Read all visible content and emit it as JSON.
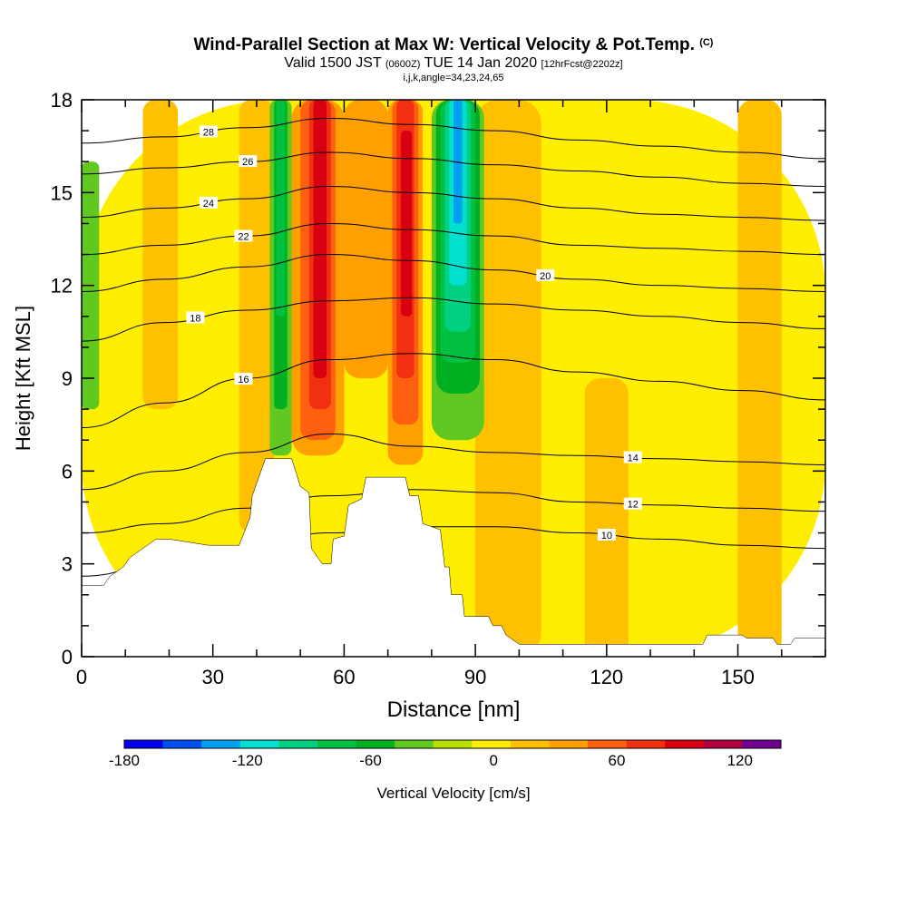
{
  "header": {
    "title": "Wind-Parallel Section at Max W: Vertical Velocity & Pot.Temp.",
    "title_unit": "(C)",
    "valid_prefix": "Valid 1500 JST",
    "valid_utc": "(0600Z)",
    "valid_date": "TUE 14 Jan 2020",
    "forecast": "[12hrFcst@2202z]",
    "indices": "i,j,k,angle=34,23,24,65"
  },
  "chart_data": {
    "type": "heatmap",
    "xlabel": "Distance [nm]",
    "ylabel": "Height [Kft MSL]",
    "xlim": [
      0,
      170
    ],
    "ylim": [
      0,
      18
    ],
    "x_ticks": [
      "0",
      "30",
      "60",
      "90",
      "120",
      "150"
    ],
    "y_ticks": [
      "0",
      "3",
      "6",
      "9",
      "12",
      "15",
      "18"
    ],
    "colorbar": {
      "label": "Vertical Velocity [cm/s]",
      "tick_labels": [
        "-180",
        "-120",
        "-60",
        "0",
        "60",
        "120"
      ],
      "range": [
        -180,
        140
      ],
      "colors": [
        "#0000f0",
        "#0050f0",
        "#00a0f0",
        "#00e0d0",
        "#00d080",
        "#00c040",
        "#00b020",
        "#60c820",
        "#b8e000",
        "#ffee00",
        "#ffc000",
        "#ffa000",
        "#ff6010",
        "#f03010",
        "#d80010",
        "#b00040",
        "#700090"
      ],
      "bin_width": 20
    },
    "velocity_cells": [
      {
        "x": [
          0,
          170
        ],
        "y": [
          0,
          18
        ],
        "w": 10
      },
      {
        "x": [
          14,
          22
        ],
        "y": [
          8,
          18
        ],
        "w": 30
      },
      {
        "x": [
          36,
          44
        ],
        "y": [
          4,
          18
        ],
        "w": 30
      },
      {
        "x": [
          90,
          105
        ],
        "y": [
          0,
          18
        ],
        "w": 30
      },
      {
        "x": [
          115,
          125
        ],
        "y": [
          0,
          9
        ],
        "w": 30
      },
      {
        "x": [
          150,
          160
        ],
        "y": [
          0,
          18
        ],
        "w": 30
      },
      {
        "x": [
          0,
          4
        ],
        "y": [
          8,
          16
        ],
        "w": -30
      },
      {
        "x": [
          43,
          48
        ],
        "y": [
          6.5,
          18
        ],
        "w": -40
      },
      {
        "x": [
          44,
          47
        ],
        "y": [
          8,
          18
        ],
        "w": -60
      },
      {
        "x": [
          44.5,
          46.5
        ],
        "y": [
          11,
          18
        ],
        "w": -80
      },
      {
        "x": [
          48,
          60
        ],
        "y": [
          6.5,
          18
        ],
        "w": 40
      },
      {
        "x": [
          50,
          58
        ],
        "y": [
          7,
          18
        ],
        "w": 60
      },
      {
        "x": [
          52,
          57
        ],
        "y": [
          8,
          18
        ],
        "w": 80
      },
      {
        "x": [
          53,
          56
        ],
        "y": [
          9,
          18
        ],
        "w": 100
      },
      {
        "x": [
          60,
          70
        ],
        "y": [
          9,
          18
        ],
        "w": 40
      },
      {
        "x": [
          70,
          78
        ],
        "y": [
          6.2,
          18
        ],
        "w": 40
      },
      {
        "x": [
          71,
          77
        ],
        "y": [
          7.5,
          18
        ],
        "w": 60
      },
      {
        "x": [
          72,
          76
        ],
        "y": [
          9,
          18
        ],
        "w": 80
      },
      {
        "x": [
          73,
          75.5
        ],
        "y": [
          11,
          17
        ],
        "w": 100
      },
      {
        "x": [
          80,
          92
        ],
        "y": [
          7,
          18
        ],
        "w": -30
      },
      {
        "x": [
          81,
          91
        ],
        "y": [
          8.5,
          18
        ],
        "w": -50
      },
      {
        "x": [
          82,
          90
        ],
        "y": [
          9.5,
          18
        ],
        "w": -70
      },
      {
        "x": [
          83,
          89
        ],
        "y": [
          10.5,
          18
        ],
        "w": -90
      },
      {
        "x": [
          84,
          88
        ],
        "y": [
          12,
          18
        ],
        "w": -110
      },
      {
        "x": [
          85,
          87
        ],
        "y": [
          14,
          18
        ],
        "w": -130
      }
    ],
    "isotherms": [
      {
        "value": "10",
        "label_x": 120,
        "y": [
          2.6,
          3.0,
          3.6,
          4.0,
          4.2,
          4.2,
          4.0,
          3.8,
          3.6,
          3.5
        ]
      },
      {
        "value": "12",
        "label_x": 126,
        "y": [
          4.0,
          4.3,
          4.8,
          5.2,
          5.4,
          5.3,
          5.0,
          4.9,
          4.8,
          4.7
        ]
      },
      {
        "value": "14",
        "label_x": 126,
        "y": [
          5.4,
          6.0,
          6.6,
          7.2,
          6.8,
          6.6,
          6.5,
          6.4,
          6.3,
          6.2
        ]
      },
      {
        "value": "16",
        "label_x": 37,
        "y": [
          7.4,
          8.2,
          9.0,
          9.6,
          9.8,
          9.6,
          9.2,
          8.9,
          8.6,
          8.3
        ]
      },
      {
        "value": "18",
        "label_x": 26,
        "y": [
          10.2,
          10.8,
          11.2,
          11.5,
          11.6,
          11.4,
          11.2,
          11.0,
          10.8,
          10.6
        ]
      },
      {
        "value": "20",
        "label_x": 106,
        "y": [
          11.8,
          12.2,
          12.6,
          13.0,
          12.8,
          12.5,
          12.2,
          12.0,
          11.9,
          11.8
        ]
      },
      {
        "value": "22",
        "label_x": 37,
        "y": [
          13.0,
          13.3,
          13.6,
          14.0,
          13.8,
          13.6,
          13.3,
          13.2,
          13.1,
          13.0
        ]
      },
      {
        "value": "24",
        "label_x": 29,
        "y": [
          14.2,
          14.5,
          14.8,
          15.2,
          15.0,
          14.8,
          14.5,
          14.3,
          14.2,
          14.1
        ]
      },
      {
        "value": "26",
        "label_x": 38,
        "y": [
          15.6,
          15.8,
          16.0,
          16.3,
          16.1,
          15.9,
          15.7,
          15.5,
          15.3,
          15.2
        ]
      },
      {
        "value": "28",
        "label_x": 29,
        "y": [
          16.6,
          16.8,
          17.1,
          17.4,
          17.2,
          17.0,
          16.7,
          16.5,
          16.3,
          16.1
        ]
      }
    ],
    "terrain": [
      [
        0,
        2.3
      ],
      [
        5,
        2.3
      ],
      [
        6.5,
        2.6
      ],
      [
        9.5,
        2.9
      ],
      [
        11,
        3.2
      ],
      [
        14,
        3.5
      ],
      [
        17,
        3.8
      ],
      [
        20,
        3.8
      ],
      [
        29,
        3.6
      ],
      [
        36,
        3.6
      ],
      [
        38.5,
        4.5
      ],
      [
        39,
        5.2
      ],
      [
        42,
        6.4
      ],
      [
        48,
        6.4
      ],
      [
        50,
        5.5
      ],
      [
        52,
        5.3
      ],
      [
        52.5,
        3.5
      ],
      [
        55,
        3.0
      ],
      [
        57,
        3.0
      ],
      [
        57.5,
        3.8
      ],
      [
        60,
        3.9
      ],
      [
        61,
        4.9
      ],
      [
        64,
        5.1
      ],
      [
        65,
        5.8
      ],
      [
        74,
        5.8
      ],
      [
        75,
        5.2
      ],
      [
        77,
        5.2
      ],
      [
        78,
        4.3
      ],
      [
        82,
        4.1
      ],
      [
        83,
        2.9
      ],
      [
        84,
        2.9
      ],
      [
        84.5,
        2.0
      ],
      [
        87,
        2.0
      ],
      [
        87.5,
        1.3
      ],
      [
        93,
        1.3
      ],
      [
        94,
        1.0
      ],
      [
        96,
        1.0
      ],
      [
        97,
        0.7
      ],
      [
        100,
        0.4
      ],
      [
        142,
        0.4
      ],
      [
        143,
        0.7
      ],
      [
        151,
        0.7
      ],
      [
        152,
        0.6
      ],
      [
        158,
        0.6
      ],
      [
        159,
        0.4
      ],
      [
        162,
        0.4
      ],
      [
        163,
        0.6
      ],
      [
        170,
        0.6
      ]
    ]
  }
}
